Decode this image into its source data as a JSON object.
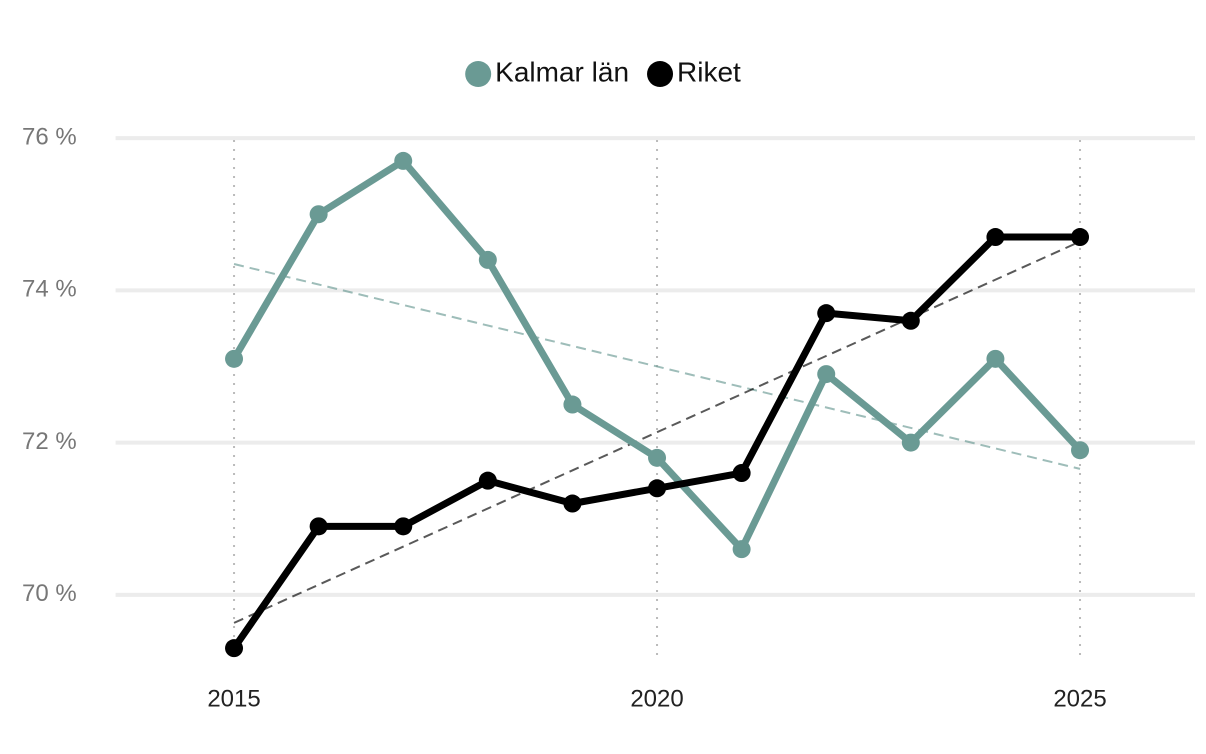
{
  "chart_data": {
    "type": "line",
    "x": [
      2015,
      2016,
      2017,
      2018,
      2019,
      2020,
      2021,
      2022,
      2023,
      2024,
      2025
    ],
    "series": [
      {
        "name": "Kalmar län",
        "color": "#6a9a94",
        "values": [
          73.1,
          75.0,
          75.7,
          74.4,
          72.5,
          71.8,
          70.6,
          72.9,
          72.0,
          73.1,
          71.9
        ]
      },
      {
        "name": "Riket",
        "color": "#000000",
        "values": [
          69.3,
          70.9,
          70.9,
          71.5,
          71.2,
          71.4,
          71.6,
          73.7,
          73.6,
          74.7,
          74.7
        ]
      }
    ],
    "xlim": [
      2013.6,
      2026.3
    ],
    "xticks": [
      2015,
      2020,
      2025
    ],
    "ylim": [
      69,
      76.5
    ],
    "yticks": [
      {
        "value": 70,
        "label": "70 %"
      },
      {
        "value": 72,
        "label": "72 %"
      },
      {
        "value": 74,
        "label": "74 %"
      },
      {
        "value": 76,
        "label": "76 %"
      }
    ],
    "grid": true,
    "trendline": true,
    "legend": "top"
  }
}
